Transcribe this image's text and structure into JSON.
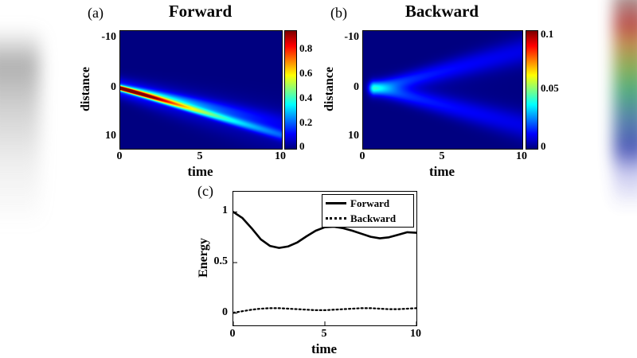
{
  "figure": {
    "panels": {
      "a": {
        "label": "(a)",
        "title": "Forward",
        "xlabel": "time",
        "ylabel": "distance",
        "xticks": [
          "0",
          "5",
          "10"
        ],
        "yticks": [
          "-10",
          "0",
          "10"
        ],
        "cbar_ticks": [
          "0.8",
          "0.6",
          "0.4",
          "0.2",
          "0"
        ]
      },
      "b": {
        "label": "(b)",
        "title": "Backward",
        "xlabel": "time",
        "ylabel": "distance",
        "xticks": [
          "0",
          "5",
          "10"
        ],
        "yticks": [
          "-10",
          "0",
          "10"
        ],
        "cbar_ticks": [
          "0.1",
          "0.05",
          "0"
        ]
      },
      "c": {
        "label": "(c)",
        "xlabel": "time",
        "ylabel": "Energy",
        "xticks": [
          "0",
          "5",
          "10"
        ],
        "yticks": [
          "1",
          "0.5",
          "0"
        ],
        "legend": [
          "Forward",
          "Backward"
        ]
      }
    }
  },
  "chart_data": [
    {
      "id": "forward-heatmap",
      "type": "heatmap",
      "panel": "(a)",
      "title": "Forward",
      "xlabel": "time",
      "ylabel": "distance",
      "x_range": [
        0,
        10
      ],
      "y_range": [
        -11.5,
        12.2
      ],
      "y_axis_reversed": true,
      "x_ticks": [
        0,
        5,
        10
      ],
      "y_ticks": [
        -10,
        0,
        10
      ],
      "colorbar": {
        "ticks": [
          0,
          0.2,
          0.4,
          0.6,
          0.8
        ],
        "range": [
          0,
          0.95
        ],
        "colormap": "jet"
      },
      "background_color": "#00008F",
      "description": "Intense wave packet (peak ~0.95, red/orange) at distance 0 near time 0, propagating as a narrow bright beam reaching distance ~9.5 at time 10, intensity decaying to ~0.15 (blue); a fainter secondary beam of slope ~0.7 lies above the main beam.",
      "field": {
        "shift": 0,
        "cmax": 0.95,
        "rays": [
          {
            "slope": 0.95,
            "w0": 0.25,
            "wt": 0.05,
            "amp": 0.95,
            "decay": 5.5
          },
          {
            "slope": 0.7,
            "w0": 0.4,
            "wt": 0.1,
            "amp": 0.45,
            "decay": 5.0
          },
          {
            "slope": 0.85,
            "w0": 1.3,
            "wt": 0.2,
            "amp": 0.18,
            "decay": 7.0
          }
        ]
      }
    },
    {
      "id": "backward-heatmap",
      "type": "heatmap",
      "panel": "(b)",
      "title": "Backward",
      "xlabel": "time",
      "ylabel": "distance",
      "x_range": [
        0,
        10
      ],
      "y_range": [
        -11.5,
        12.2
      ],
      "y_axis_reversed": true,
      "x_ticks": [
        0,
        5,
        10
      ],
      "y_ticks": [
        -10,
        0,
        10
      ],
      "colorbar": {
        "ticks": [
          0,
          0.05,
          0.1
        ],
        "range": [
          0,
          0.1
        ],
        "colormap": "jet"
      },
      "background_color": "#00008F",
      "description": "Weak V-shaped (arrowhead) pattern with vertex near distance 0 at time ~1; two faint blue arms (peak value ~0.04 of 0.1 scale) spread symmetrically toward distances ±8 by time 10, fading with time.",
      "field": {
        "shift": 0.7,
        "cmax": 0.1,
        "rays": [
          {
            "slope": 0.8,
            "w0": 0.9,
            "wt": 0.12,
            "amp": 0.016,
            "decay": 20
          },
          {
            "slope": -0.8,
            "w0": 0.9,
            "wt": 0.12,
            "amp": 0.016,
            "decay": 20
          },
          {
            "slope": 0,
            "w0": 1.3,
            "wt": 0.3,
            "amp": 0.01,
            "decay": 2.5
          }
        ]
      }
    },
    {
      "id": "energy-vs-time",
      "type": "line",
      "panel": "(c)",
      "xlabel": "time",
      "ylabel": "Energy",
      "x_range": [
        0,
        10
      ],
      "y_range": [
        -0.12,
        1.2
      ],
      "x_ticks": [
        0,
        5,
        10
      ],
      "y_ticks": [
        0,
        0.5,
        1
      ],
      "legend_position": "top-right",
      "x": [
        0,
        0.5,
        1,
        1.5,
        2,
        2.5,
        3,
        3.5,
        4,
        4.5,
        5,
        5.5,
        6,
        6.5,
        7,
        7.5,
        8,
        8.5,
        9,
        9.5,
        10
      ],
      "series": [
        {
          "name": "Forward",
          "style": "solid",
          "values": [
            1.0,
            0.94,
            0.84,
            0.73,
            0.665,
            0.645,
            0.66,
            0.7,
            0.76,
            0.815,
            0.85,
            0.855,
            0.84,
            0.815,
            0.785,
            0.755,
            0.74,
            0.75,
            0.775,
            0.8,
            0.795
          ]
        },
        {
          "name": "Backward",
          "style": "dotted",
          "values": [
            0.005,
            0.02,
            0.035,
            0.045,
            0.05,
            0.05,
            0.045,
            0.04,
            0.035,
            0.03,
            0.03,
            0.035,
            0.04,
            0.045,
            0.05,
            0.05,
            0.045,
            0.04,
            0.04,
            0.045,
            0.05
          ]
        }
      ]
    }
  ]
}
